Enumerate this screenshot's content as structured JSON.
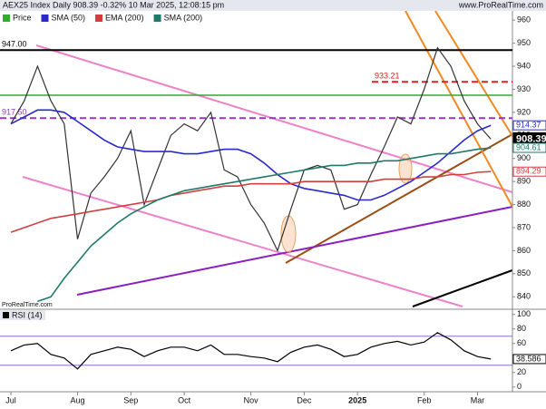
{
  "chart_data": [
    {
      "type": "line",
      "title": "AEX25 Index Daily 908.39 -0.32% 10 Mar 2025, 12:08:15 pm",
      "source": "www.ProRealTime.com",
      "watermark": "ProRealTime.com",
      "ylim": [
        835,
        964
      ],
      "yticks": [
        840,
        850,
        860,
        870,
        880,
        890,
        900,
        910,
        920,
        930,
        940,
        950,
        960
      ],
      "series": [
        {
          "name": "Price",
          "color": "#333333",
          "values": [
            915,
            925,
            940,
            925,
            915,
            865,
            885,
            892,
            900,
            912,
            880,
            895,
            910,
            915,
            912,
            920,
            895,
            892,
            880,
            872,
            860,
            878,
            895,
            897,
            895,
            878,
            880,
            893,
            905,
            918,
            915,
            930,
            948,
            940,
            925,
            915,
            908.39
          ]
        },
        {
          "name": "SMA (50)",
          "color": "#2a2acc",
          "values": [
            915,
            918,
            921,
            921,
            920,
            916,
            912,
            908,
            905,
            904,
            903,
            903,
            903,
            902,
            902,
            903,
            904,
            904,
            902,
            898,
            893,
            889,
            887,
            886,
            885,
            884,
            882,
            882,
            884,
            887,
            890,
            894,
            898,
            903,
            908,
            912,
            914.37
          ]
        },
        {
          "name": "EMA (200)",
          "color": "#d04040",
          "values": [
            868,
            870,
            872,
            874,
            875,
            876,
            877,
            878,
            879,
            880,
            881,
            882,
            884,
            885,
            886,
            887,
            888,
            888,
            889,
            889,
            889,
            889,
            890,
            890,
            890,
            890,
            890,
            890,
            891,
            891,
            891,
            892,
            892,
            893,
            893,
            894,
            894.29
          ]
        },
        {
          "name": "SMA (200)",
          "color": "#1f7a6a",
          "values": [
            null,
            null,
            838,
            840,
            848,
            855,
            862,
            867,
            872,
            876,
            879,
            882,
            884,
            886,
            887,
            888,
            889,
            890,
            891,
            892,
            893,
            894,
            895,
            896,
            897,
            897,
            898,
            898,
            899,
            899,
            900,
            901,
            902,
            902,
            903,
            904,
            904.61
          ]
        }
      ],
      "levels": [
        {
          "value": 947,
          "label": "947.00",
          "color": "#000000"
        },
        {
          "value": 933.21,
          "label": "933.21",
          "color": "#dd2222"
        },
        {
          "value": 917.5,
          "label": "917.50",
          "color": "#9933cc"
        }
      ],
      "axis_tags": [
        {
          "value": 914.37,
          "label": "914.37",
          "color": "#2a2acc"
        },
        {
          "value": 908.39,
          "label": "908.39",
          "color": "#000000"
        },
        {
          "value": 904.61,
          "label": "904.61",
          "color": "#1f7a6a"
        },
        {
          "value": 894.29,
          "label": "894.29",
          "color": "#d04040"
        }
      ]
    },
    {
      "type": "line",
      "title": "RSI (14)",
      "categories": [
        "Jul",
        null,
        null,
        null,
        null,
        "Aug",
        null,
        null,
        null,
        "Sep",
        null,
        null,
        null,
        "Oct",
        null,
        null,
        null,
        null,
        "Nov",
        null,
        null,
        null,
        "Dec",
        null,
        null,
        null,
        "2025",
        null,
        null,
        null,
        null,
        "Feb",
        null,
        null,
        null,
        "Mar",
        null
      ],
      "ylim": [
        -4,
        106
      ],
      "yticks": [
        0,
        20,
        40,
        60,
        80,
        100
      ],
      "levels": [
        30,
        70
      ],
      "series": [
        {
          "name": "RSI (14)",
          "color": "#000000",
          "values": [
            50,
            58,
            60,
            45,
            40,
            25,
            45,
            50,
            55,
            52,
            42,
            50,
            55,
            55,
            50,
            58,
            45,
            45,
            42,
            40,
            35,
            48,
            55,
            58,
            52,
            42,
            45,
            55,
            60,
            63,
            58,
            62,
            75,
            65,
            50,
            42,
            38.586
          ]
        }
      ]
    }
  ]
}
